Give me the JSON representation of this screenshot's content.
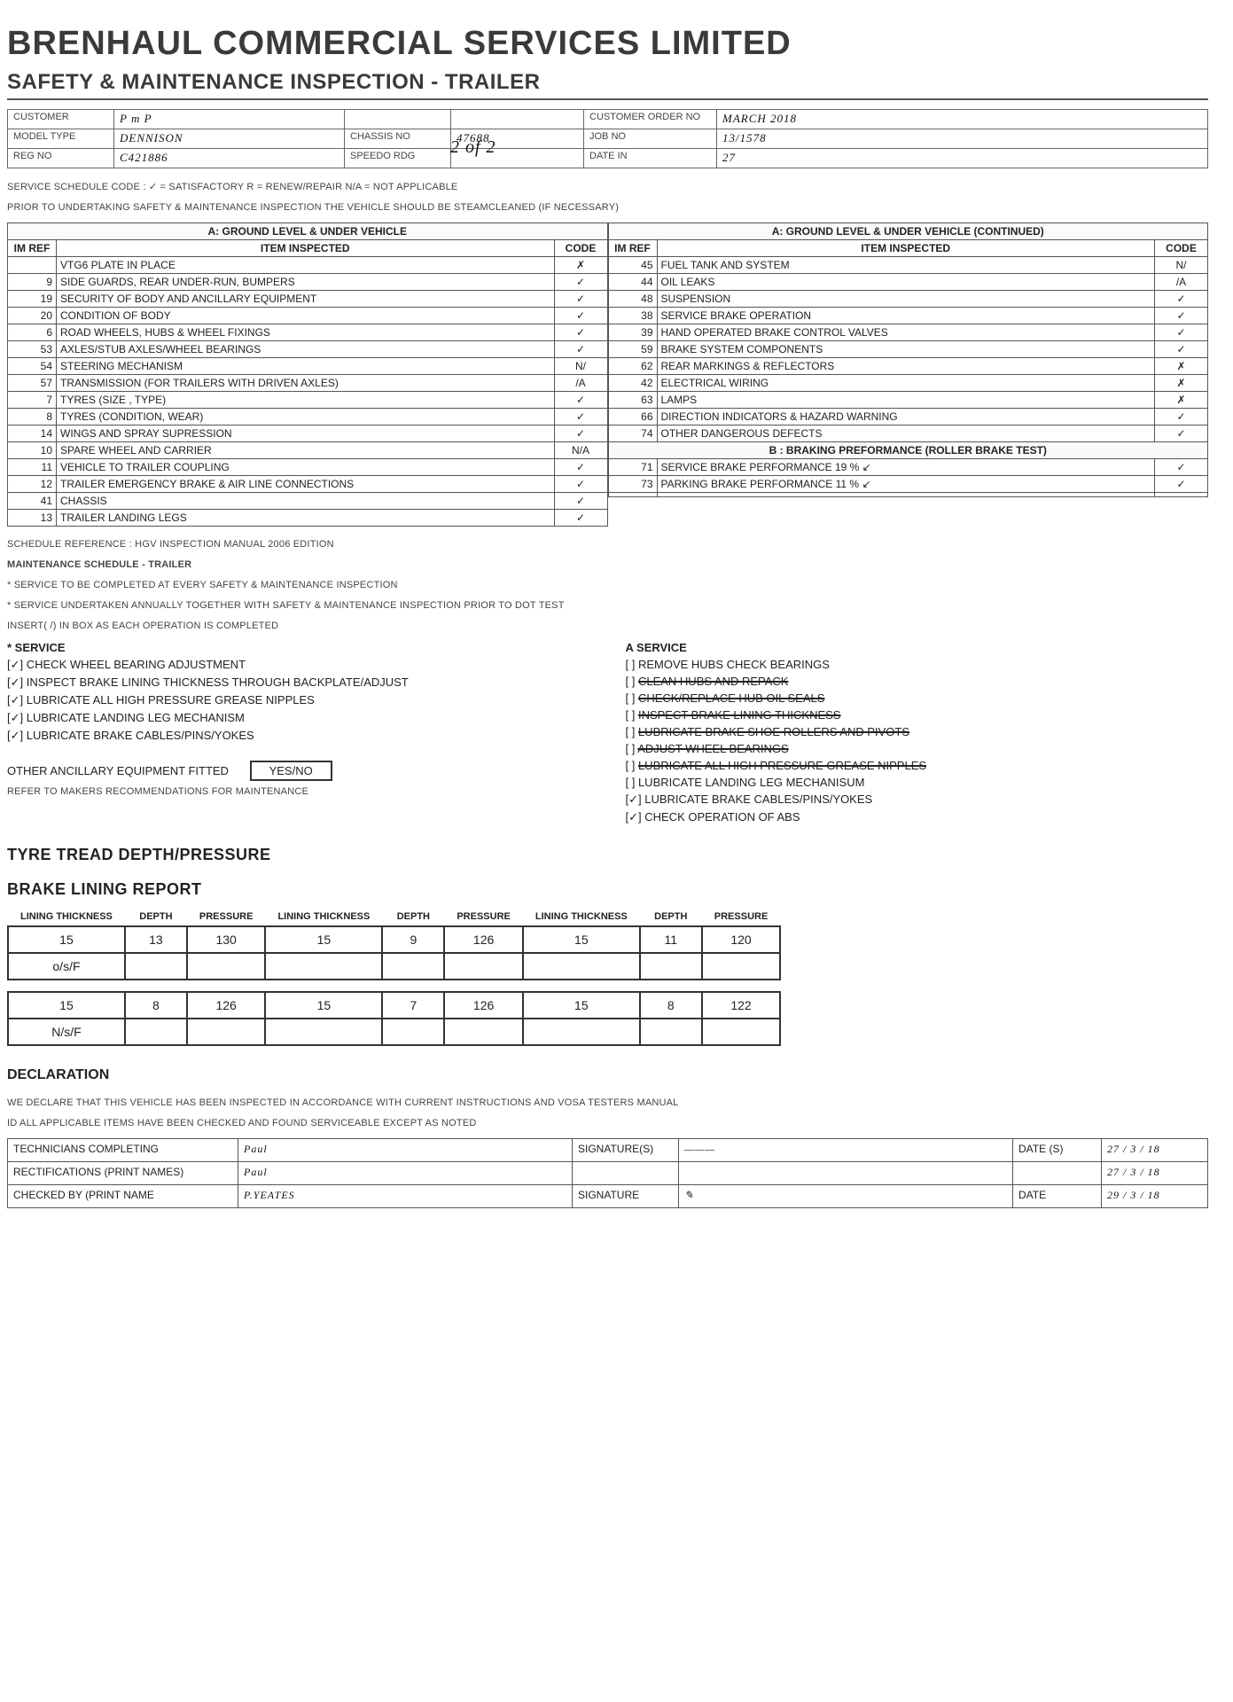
{
  "company": "BRENHAUL COMMERCIAL SERVICES LIMITED",
  "form_title": "SAFETY & MAINTENANCE INSPECTION - TRAILER",
  "page_of": "2 of 2",
  "header": {
    "customer_label": "CUSTOMER",
    "customer": "P m P",
    "order_label": "CUSTOMER ORDER NO",
    "order": "MARCH 2018",
    "model_label": "MODEL TYPE",
    "model": "DENNISON",
    "chassis_label": "CHASSIS NO",
    "chassis": "47688",
    "job_label": "JOB NO",
    "job": "13/1578",
    "reg_label": "REG NO",
    "reg": "C421886",
    "speedo_label": "SPEEDO RDG",
    "speedo": "",
    "date_label": "DATE IN",
    "date": "27"
  },
  "code_legend": "SERVICE SCHEDULE CODE :  ✓ = SATISFACTORY   R = RENEW/REPAIR   N/A = NOT APPLICABLE",
  "steam_note": "PRIOR TO UNDERTAKING SAFETY & MAINTENANCE INSPECTION THE VEHICLE SHOULD BE STEAMCLEANED (IF NECESSARY)",
  "col_headers": {
    "im": "IM REF",
    "item": "ITEM INSPECTED",
    "code": "CODE"
  },
  "sectA_title": "A: GROUND LEVEL & UNDER VEHICLE",
  "sectA2_title": "A: GROUND LEVEL & UNDER VEHICLE (CONTINUED)",
  "sectB_title": "B : BRAKING PREFORMANCE (ROLLER BRAKE TEST)",
  "left_items": [
    {
      "im": "",
      "item": "VTG6 PLATE IN PLACE",
      "code": "✗"
    },
    {
      "im": "9",
      "item": "SIDE GUARDS, REAR UNDER-RUN, BUMPERS",
      "code": "✓"
    },
    {
      "im": "19",
      "item": "SECURITY OF BODY AND ANCILLARY EQUIPMENT",
      "code": "✓"
    },
    {
      "im": "20",
      "item": "CONDITION OF BODY",
      "code": "✓"
    },
    {
      "im": "6",
      "item": "ROAD WHEELS, HUBS & WHEEL FIXINGS",
      "code": "✓"
    },
    {
      "im": "53",
      "item": "AXLES/STUB AXLES/WHEEL BEARINGS",
      "code": "✓"
    },
    {
      "im": "54",
      "item": "STEERING MECHANISM",
      "code": "N/"
    },
    {
      "im": "57",
      "item": "TRANSMISSION (FOR TRAILERS WITH DRIVEN AXLES)",
      "code": "/A"
    },
    {
      "im": "7",
      "item": "TYRES (SIZE , TYPE)",
      "code": "✓"
    },
    {
      "im": "8",
      "item": "TYRES (CONDITION, WEAR)",
      "code": "✓"
    },
    {
      "im": "14",
      "item": "WINGS AND SPRAY SUPRESSION",
      "code": "✓"
    },
    {
      "im": "10",
      "item": "SPARE WHEEL AND CARRIER",
      "code": "N/A"
    },
    {
      "im": "11",
      "item": "VEHICLE TO TRAILER COUPLING",
      "code": "✓"
    },
    {
      "im": "12",
      "item": "TRAILER EMERGENCY BRAKE & AIR LINE CONNECTIONS",
      "code": "✓"
    },
    {
      "im": "41",
      "item": "CHASSIS",
      "code": "✓"
    },
    {
      "im": "13",
      "item": "TRAILER LANDING LEGS",
      "code": "✓"
    }
  ],
  "right_items": [
    {
      "im": "45",
      "item": "FUEL TANK AND SYSTEM",
      "code": "N/"
    },
    {
      "im": "44",
      "item": "OIL LEAKS",
      "code": "/A"
    },
    {
      "im": "48",
      "item": "SUSPENSION",
      "code": "✓"
    },
    {
      "im": "38",
      "item": "SERVICE BRAKE OPERATION",
      "code": "✓"
    },
    {
      "im": "39",
      "item": "HAND OPERATED BRAKE CONTROL VALVES",
      "code": "✓"
    },
    {
      "im": "59",
      "item": "BRAKE SYSTEM COMPONENTS",
      "code": "✓"
    },
    {
      "im": "62",
      "item": "REAR MARKINGS & REFLECTORS",
      "code": "✗"
    },
    {
      "im": "42",
      "item": "ELECTRICAL WIRING",
      "code": "✗"
    },
    {
      "im": "63",
      "item": "LAMPS",
      "code": "✗"
    },
    {
      "im": "66",
      "item": "DIRECTION INDICATORS & HAZARD WARNING",
      "code": "✓"
    },
    {
      "im": "74",
      "item": "OTHER DANGEROUS DEFECTS",
      "code": "✓"
    }
  ],
  "brake_items": [
    {
      "im": "71",
      "item": "SERVICE BRAKE PERFORMANCE       19  %  ↙",
      "code": "✓"
    },
    {
      "im": "73",
      "item": "PARKING BRAKE PERFORMANCE      11  %  ↙",
      "code": "✓"
    },
    {
      "im": "",
      "item": "",
      "code": ""
    }
  ],
  "sched_ref": "SCHEDULE REFERENCE : HGV INSPECTION MANUAL 2006 EDITION",
  "maint_title": "MAINTENANCE SCHEDULE - TRAILER",
  "maint_lines": [
    "* SERVICE TO BE COMPLETED AT EVERY SAFETY & MAINTENANCE INSPECTION",
    "* SERVICE UNDERTAKEN ANNUALLY TOGETHER WITH SAFETY & MAINTENANCE INSPECTION PRIOR TO DOT TEST",
    "INSERT( /) IN BOX AS EACH OPERATION IS COMPLETED"
  ],
  "svc_left_title": "* SERVICE",
  "svc_left": [
    {
      "c": true,
      "t": "CHECK WHEEL BEARING ADJUSTMENT"
    },
    {
      "c": true,
      "t": "INSPECT BRAKE LINING THICKNESS THROUGH BACKPLATE/ADJUST"
    },
    {
      "c": true,
      "t": "LUBRICATE ALL HIGH PRESSURE GREASE NIPPLES"
    },
    {
      "c": true,
      "t": "LUBRICATE LANDING LEG MECHANISM"
    },
    {
      "c": true,
      "t": "LUBRICATE BRAKE CABLES/PINS/YOKES"
    }
  ],
  "other_anc": "OTHER ANCILLARY EQUIPMENT FITTED",
  "yesno": "YES/NO",
  "refer_makers": "REFER TO MAKERS RECOMMENDATIONS FOR MAINTENANCE",
  "svc_right_title": "A SERVICE",
  "svc_right": [
    {
      "c": false,
      "t": "REMOVE HUBS CHECK BEARINGS"
    },
    {
      "c": false,
      "t": "CLEAN HUBS AND REPACK",
      "struck": true
    },
    {
      "c": false,
      "t": "CHECK/REPLACE HUB OIL SEALS",
      "struck": true
    },
    {
      "c": false,
      "t": "INSPECT BRAKE LINING THICKNESS",
      "struck": true
    },
    {
      "c": false,
      "t": "LUBRICATE BRAKE SHOE ROLLERS AND PIVOTS",
      "struck": true
    },
    {
      "c": false,
      "t": "ADJUST WHEEL BEARINGS",
      "struck": true
    },
    {
      "c": false,
      "t": "LUBRICATE ALL HIGH PRESSURE GREASE NIPPLES",
      "struck": true
    },
    {
      "c": false,
      "t": "LUBRICATE LANDING LEG MECHANISUM"
    },
    {
      "c": true,
      "t": "LUBRICATE BRAKE CABLES/PINS/YOKES"
    },
    {
      "c": true,
      "t": "CHECK OPERATION OF ABS"
    }
  ],
  "tread_title": "TYRE TREAD DEPTH/PRESSURE",
  "lining_title": "BRAKE LINING REPORT",
  "val_headers": [
    "LINING THICKNESS",
    "DEPTH",
    "PRESSURE",
    "LINING THICKNESS",
    "DEPTH",
    "PRESSURE",
    "LINING THICKNESS",
    "DEPTH",
    "PRESSURE"
  ],
  "val_rows": [
    [
      "15",
      "13",
      "130",
      "15",
      "9",
      "126",
      "15",
      "11",
      "120"
    ],
    [
      "o/s/F",
      "",
      "",
      "",
      "",
      "",
      "",
      "",
      ""
    ],
    [
      "15",
      "8",
      "126",
      "15",
      "7",
      "126",
      "15",
      "8",
      "122"
    ],
    [
      "N/s/F",
      "",
      "",
      "",
      "",
      "",
      "",
      "",
      ""
    ]
  ],
  "decl_title": "DECLARATION",
  "decl_line1": "WE DECLARE THAT THIS VEHICLE HAS BEEN INSPECTED IN ACCORDANCE WITH CURRENT INSTRUCTIONS AND VOSA TESTERS MANUAL",
  "decl_line2": "ID ALL APPLICABLE ITEMS HAVE BEEN CHECKED AND FOUND SERVICEABLE EXCEPT AS NOTED",
  "decl": {
    "tech_label": "TECHNICIANS COMPLETING",
    "tech": "Paul",
    "rect_label": "RECTIFICATIONS (PRINT NAMES)",
    "rect": "Paul",
    "chk_label": "CHECKED BY (PRINT NAME",
    "chk": "P.YEATES",
    "sig_label": "SIGNATURE(S)",
    "sig2_label": "SIGNATURE",
    "date_label": "DATE (S)",
    "date_label2": "DATE",
    "d1": "27 / 3 / 18",
    "d2": "27 / 3 / 18",
    "d3": "29 / 3 / 18"
  }
}
